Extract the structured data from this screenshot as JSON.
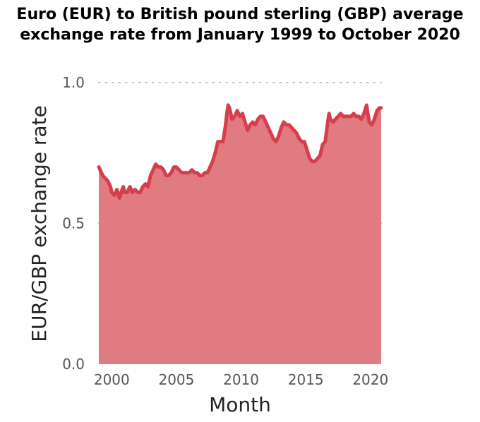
{
  "chart_data": {
    "type": "area",
    "title": "Euro (EUR) to British pound sterling (GBP) average exchange rate from January 1999 to October 2020",
    "xlabel": "Month",
    "ylabel": "EUR/GBP exchange rate",
    "xlim": [
      1999.0,
      2020.83
    ],
    "ylim": [
      0,
      1.0
    ],
    "xticks": [
      2000,
      2005,
      2010,
      2015,
      2020
    ],
    "yticks": [
      "0.0",
      "0.5",
      "1.0"
    ],
    "grid": "horizontal dotted",
    "legend": "none",
    "colors": {
      "fill": "#e17b82",
      "line": "#d63e4b",
      "grid": "#bbbbbb"
    },
    "series": [
      {
        "x": [
          1999.0,
          1999.1,
          1999.3,
          1999.5,
          1999.7,
          1999.9,
          2000.0,
          2000.2,
          2000.4,
          2000.6,
          2000.8,
          2000.9,
          2001.0,
          2001.2,
          2001.4,
          2001.6,
          2001.8,
          2002.0,
          2002.2,
          2002.4,
          2002.6,
          2002.8,
          2003.0,
          2003.2,
          2003.4,
          2003.6,
          2003.8,
          2004.0,
          2004.2,
          2004.4,
          2004.6,
          2004.8,
          2005.0,
          2005.2,
          2005.4,
          2005.6,
          2005.8,
          2006.0,
          2006.2,
          2006.4,
          2006.6,
          2006.8,
          2007.0,
          2007.2,
          2007.4,
          2007.6,
          2007.8,
          2008.0,
          2008.2,
          2008.4,
          2008.6,
          2008.8,
          2008.9,
          2009.0,
          2009.1,
          2009.3,
          2009.5,
          2009.7,
          2009.9,
          2010.1,
          2010.3,
          2010.5,
          2010.7,
          2010.9,
          2011.1,
          2011.3,
          2011.5,
          2011.7,
          2011.9,
          2012.1,
          2012.3,
          2012.5,
          2012.7,
          2012.9,
          2013.1,
          2013.3,
          2013.5,
          2013.7,
          2013.9,
          2014.1,
          2014.3,
          2014.5,
          2014.7,
          2014.9,
          2015.1,
          2015.3,
          2015.5,
          2015.7,
          2015.9,
          2016.1,
          2016.3,
          2016.5,
          2016.7,
          2016.8,
          2016.9,
          2017.1,
          2017.3,
          2017.5,
          2017.7,
          2017.9,
          2018.1,
          2018.3,
          2018.5,
          2018.7,
          2018.9,
          2019.1,
          2019.3,
          2019.5,
          2019.7,
          2019.8,
          2019.9,
          2020.1,
          2020.3,
          2020.5,
          2020.7,
          2020.83
        ],
        "values": [
          0.7,
          0.69,
          0.67,
          0.66,
          0.65,
          0.63,
          0.61,
          0.6,
          0.62,
          0.59,
          0.62,
          0.63,
          0.61,
          0.61,
          0.63,
          0.61,
          0.62,
          0.61,
          0.61,
          0.63,
          0.64,
          0.63,
          0.67,
          0.69,
          0.71,
          0.7,
          0.7,
          0.69,
          0.67,
          0.67,
          0.68,
          0.7,
          0.7,
          0.69,
          0.68,
          0.68,
          0.68,
          0.68,
          0.69,
          0.68,
          0.68,
          0.67,
          0.67,
          0.68,
          0.68,
          0.7,
          0.72,
          0.75,
          0.79,
          0.79,
          0.79,
          0.85,
          0.89,
          0.92,
          0.91,
          0.87,
          0.88,
          0.9,
          0.88,
          0.89,
          0.86,
          0.83,
          0.85,
          0.86,
          0.85,
          0.87,
          0.88,
          0.88,
          0.86,
          0.84,
          0.82,
          0.8,
          0.79,
          0.81,
          0.84,
          0.86,
          0.85,
          0.85,
          0.84,
          0.83,
          0.82,
          0.8,
          0.79,
          0.79,
          0.76,
          0.73,
          0.72,
          0.72,
          0.73,
          0.74,
          0.78,
          0.79,
          0.86,
          0.89,
          0.87,
          0.86,
          0.87,
          0.88,
          0.89,
          0.88,
          0.88,
          0.88,
          0.88,
          0.89,
          0.88,
          0.88,
          0.87,
          0.89,
          0.92,
          0.89,
          0.86,
          0.85,
          0.87,
          0.9,
          0.91,
          0.91
        ]
      }
    ]
  }
}
